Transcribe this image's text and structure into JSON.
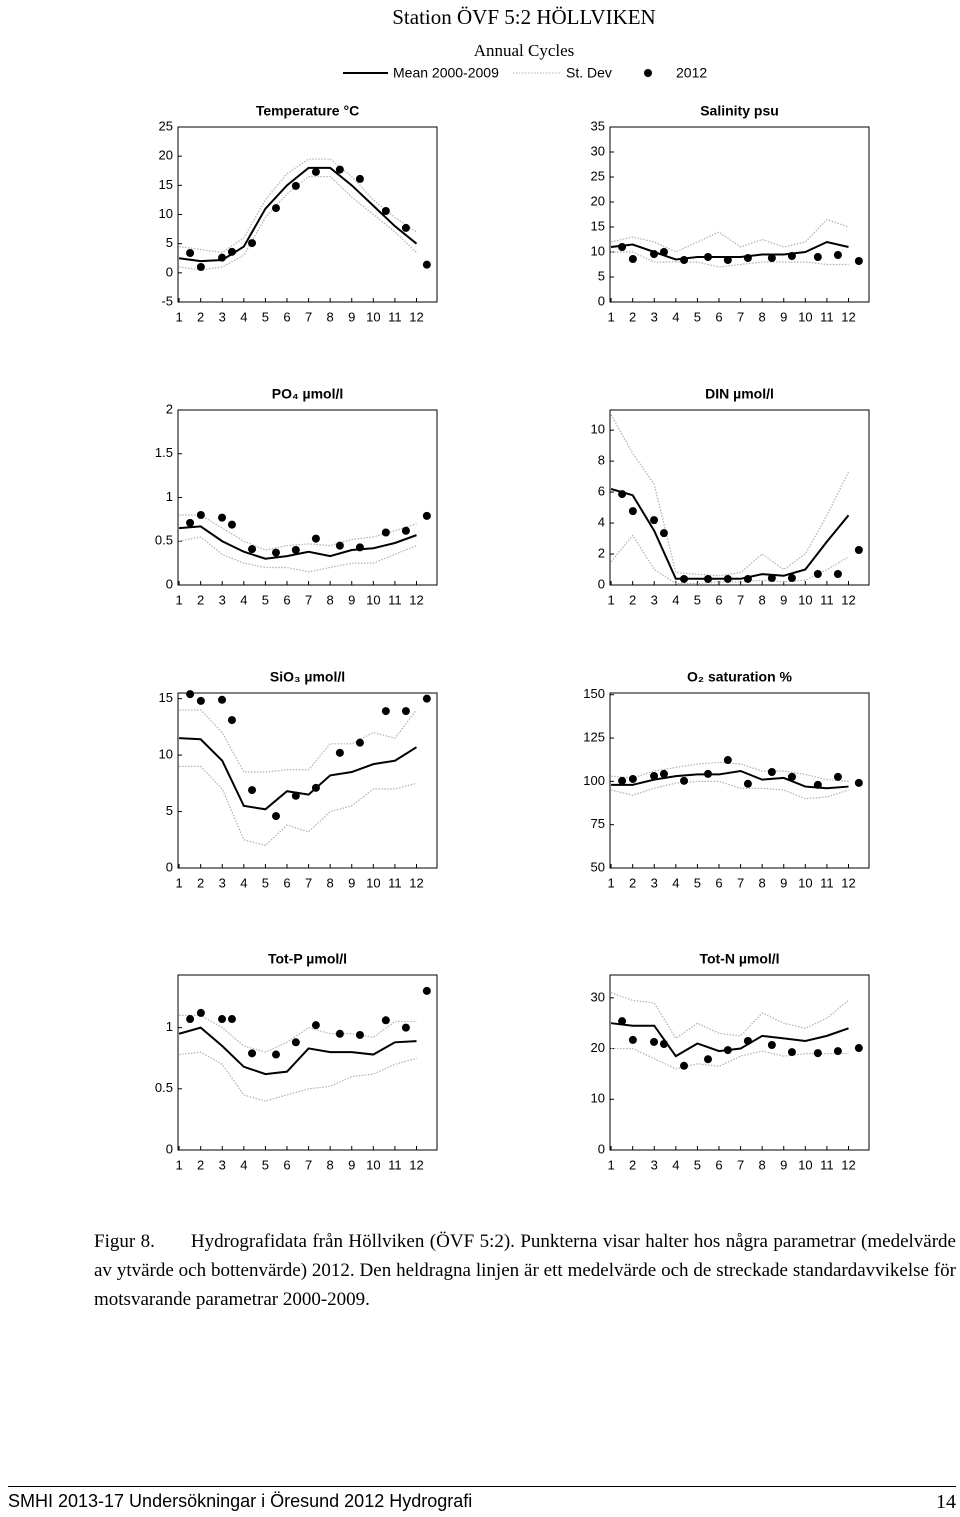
{
  "title": "Station ÖVF 5:2  HÖLLVIKEN",
  "subtitle": "Annual Cycles",
  "legend": [
    "Mean 2000-2009",
    "St. Dev",
    "2012"
  ],
  "chart_data": [
    {
      "type": "line",
      "title": "Temperature °C",
      "x": [
        1,
        2,
        3,
        4,
        5,
        6,
        7,
        8,
        9,
        10,
        11,
        12
      ],
      "xlim": [
        0.95,
        12.95
      ],
      "xticks": [
        1,
        2,
        3,
        4,
        5,
        6,
        7,
        8,
        9,
        10,
        11,
        12
      ],
      "ylim": [
        -5,
        25
      ],
      "yticks": [
        -5,
        0,
        5,
        10,
        15,
        20,
        25
      ],
      "series": [
        {
          "color": "#000000",
          "values": [
            2.5,
            2,
            2.2,
            4.5,
            11,
            15,
            18,
            18,
            15,
            11.5,
            8,
            5
          ]
        },
        {
          "color": "#b0b0b0",
          "upper": [
            4.5,
            4,
            3.5,
            6,
            12.5,
            17,
            19.5,
            19.5,
            16.5,
            12.5,
            9.5,
            7
          ],
          "lower": [
            1,
            0.5,
            1,
            3,
            9.5,
            13.5,
            16.5,
            16.5,
            13,
            10,
            7,
            3.5
          ]
        },
        {
          "color": "#000000",
          "x": [
            1.51,
            2.01,
            2.99,
            3.45,
            4.38,
            5.49,
            6.41,
            7.34,
            8.45,
            9.38,
            10.58,
            11.51,
            12.48
          ],
          "values": [
            3.4,
            1.0,
            2.6,
            3.6,
            5.1,
            11.1,
            14.9,
            17.3,
            17.7,
            16.1,
            10.6,
            7.7,
            1.4
          ]
        }
      ]
    },
    {
      "type": "line",
      "title": "Salinity psu",
      "x": [
        1,
        2,
        3,
        4,
        5,
        6,
        7,
        8,
        9,
        10,
        11,
        12
      ],
      "xlim": [
        0.95,
        12.95
      ],
      "xticks": [
        1,
        2,
        3,
        4,
        5,
        6,
        7,
        8,
        9,
        10,
        11,
        12
      ],
      "ylim": [
        0,
        35
      ],
      "yticks": [
        0,
        5,
        10,
        15,
        20,
        25,
        30,
        35
      ],
      "series": [
        {
          "color": "#000000",
          "values": [
            11,
            11.5,
            10,
            8.5,
            9,
            9,
            9,
            9.5,
            9.5,
            10,
            12,
            11
          ]
        },
        {
          "color": "#b0b0b0",
          "upper": [
            12,
            13,
            12,
            10,
            12,
            14,
            11,
            12.5,
            11,
            12,
            16.5,
            15
          ],
          "lower": [
            10,
            10,
            8,
            8,
            8,
            7,
            7.5,
            8,
            8,
            8,
            7.5,
            7.5
          ]
        },
        {
          "color": "#000000",
          "x": [
            1.51,
            2.01,
            2.99,
            3.45,
            4.38,
            5.49,
            6.41,
            7.34,
            8.45,
            9.38,
            10.58,
            11.51,
            12.48
          ],
          "values": [
            11,
            8.6,
            9.6,
            10,
            8.4,
            9,
            8.4,
            8.8,
            8.8,
            9.2,
            9,
            9.4,
            8.2
          ]
        }
      ]
    },
    {
      "type": "line",
      "title": "PO₄ µmol/l",
      "x": [
        1,
        2,
        3,
        4,
        5,
        6,
        7,
        8,
        9,
        10,
        11,
        12
      ],
      "xlim": [
        0.95,
        12.95
      ],
      "xticks": [
        1,
        2,
        3,
        4,
        5,
        6,
        7,
        8,
        9,
        10,
        11,
        12
      ],
      "ylim": [
        0,
        2
      ],
      "yticks": [
        0,
        0.5,
        1,
        1.5,
        2
      ],
      "series": [
        {
          "color": "#000000",
          "values": [
            0.65,
            0.67,
            0.5,
            0.38,
            0.3,
            0.33,
            0.38,
            0.33,
            0.4,
            0.42,
            0.48,
            0.57
          ]
        },
        {
          "color": "#b0b0b0",
          "upper": [
            0.8,
            0.8,
            0.65,
            0.5,
            0.4,
            0.45,
            0.47,
            0.45,
            0.52,
            0.55,
            0.62,
            0.7
          ],
          "lower": [
            0.5,
            0.55,
            0.35,
            0.25,
            0.2,
            0.2,
            0.15,
            0.2,
            0.25,
            0.25,
            0.35,
            0.45
          ]
        },
        {
          "color": "#000000",
          "x": [
            1.51,
            2.01,
            2.99,
            3.45,
            4.38,
            5.49,
            6.41,
            7.34,
            8.45,
            9.38,
            10.58,
            11.51,
            12.48
          ],
          "values": [
            0.71,
            0.8,
            0.77,
            0.69,
            0.41,
            0.37,
            0.4,
            0.53,
            0.45,
            0.43,
            0.6,
            0.62,
            0.79
          ]
        }
      ]
    },
    {
      "type": "line",
      "title": "DIN µmol/l",
      "x": [
        1,
        2,
        3,
        4,
        5,
        6,
        7,
        8,
        9,
        10,
        11,
        12
      ],
      "xlim": [
        0.95,
        12.95
      ],
      "xticks": [
        1,
        2,
        3,
        4,
        5,
        6,
        7,
        8,
        9,
        10,
        11,
        12
      ],
      "ylim": [
        0,
        11.3
      ],
      "yticks": [
        0,
        2,
        4,
        6,
        8,
        10
      ],
      "series": [
        {
          "color": "#000000",
          "values": [
            6.2,
            5.8,
            3.5,
            0.4,
            0.4,
            0.4,
            0.4,
            0.7,
            0.6,
            1,
            2.8,
            4.5
          ]
        },
        {
          "color": "#b0b0b0",
          "upper": [
            11,
            8.5,
            6.5,
            0.8,
            0.7,
            0.6,
            0.8,
            2,
            1,
            2,
            4.5,
            7.3
          ],
          "lower": [
            1.5,
            3.2,
            1,
            0.1,
            0.1,
            0.2,
            0.2,
            0.3,
            0.2,
            0.3,
            1,
            1.8
          ]
        },
        {
          "color": "#000000",
          "x": [
            1.51,
            2.01,
            2.99,
            3.45,
            4.38,
            5.49,
            6.41,
            7.34,
            8.45,
            9.38,
            10.58,
            11.51,
            12.48
          ],
          "values": [
            5.87,
            4.77,
            4.19,
            3.35,
            0.39,
            0.39,
            0.39,
            0.39,
            0.45,
            0.45,
            0.71,
            0.71,
            2.26
          ]
        }
      ]
    },
    {
      "type": "line",
      "title": "SiO₃ µmol/l",
      "x": [
        1,
        2,
        3,
        4,
        5,
        6,
        7,
        8,
        9,
        10,
        11,
        12
      ],
      "xlim": [
        0.95,
        12.95
      ],
      "xticks": [
        1,
        2,
        3,
        4,
        5,
        6,
        7,
        8,
        9,
        10,
        11,
        12
      ],
      "ylim": [
        0,
        15.5
      ],
      "yticks": [
        0,
        5,
        10,
        15
      ],
      "series": [
        {
          "color": "#000000",
          "values": [
            11.5,
            11.4,
            9.5,
            5.5,
            5.2,
            6.8,
            6.5,
            8.2,
            8.5,
            9.2,
            9.5,
            10.7
          ]
        },
        {
          "color": "#b0b0b0",
          "upper": [
            14,
            14,
            12,
            8.5,
            8.5,
            8.7,
            8.7,
            11,
            11,
            12,
            11.5,
            14
          ],
          "lower": [
            9,
            9,
            7,
            2.5,
            2,
            3.8,
            3.2,
            5,
            5.5,
            7,
            7,
            7.5
          ]
        },
        {
          "color": "#000000",
          "x": [
            1.51,
            2.01,
            2.99,
            3.45,
            4.38,
            5.49,
            6.41,
            7.34,
            8.45,
            9.38,
            10.58,
            11.51,
            12.48
          ],
          "values": [
            15.4,
            14.8,
            14.9,
            13.1,
            6.9,
            4.6,
            6.4,
            7.1,
            10.2,
            11.1,
            13.9,
            13.9,
            15.0
          ]
        }
      ]
    },
    {
      "type": "line",
      "title": "O₂ saturation %",
      "x": [
        1,
        2,
        3,
        4,
        5,
        6,
        7,
        8,
        9,
        10,
        11,
        12
      ],
      "xlim": [
        0.95,
        12.95
      ],
      "xticks": [
        1,
        2,
        3,
        4,
        5,
        6,
        7,
        8,
        9,
        10,
        11,
        12
      ],
      "ylim": [
        50,
        151
      ],
      "yticks": [
        50,
        75,
        100,
        125,
        150
      ],
      "series": [
        {
          "color": "#000000",
          "values": [
            98,
            98,
            101,
            103,
            104,
            104,
            106,
            101,
            102,
            97,
            96,
            97
          ]
        },
        {
          "color": "#b0b0b0",
          "upper": [
            103,
            102,
            106,
            108,
            110,
            111,
            110,
            106,
            106,
            104,
            101,
            100
          ],
          "lower": [
            95,
            92,
            96,
            99,
            100,
            100,
            96,
            96,
            95,
            90,
            91,
            95
          ]
        },
        {
          "color": "#000000",
          "x": [
            1.51,
            2.01,
            2.99,
            3.45,
            4.38,
            5.49,
            6.41,
            7.34,
            8.45,
            9.38,
            10.58,
            11.51,
            12.48
          ],
          "values": [
            100.3,
            101.4,
            103.1,
            104.3,
            100.3,
            104.3,
            112.3,
            98.6,
            105.4,
            102.6,
            98,
            102.6,
            99.1
          ]
        }
      ]
    },
    {
      "type": "line",
      "title": "Tot-P µmol/l",
      "x": [
        1,
        2,
        3,
        4,
        5,
        6,
        7,
        8,
        9,
        10,
        11,
        12
      ],
      "xlim": [
        0.95,
        12.95
      ],
      "xticks": [
        1,
        2,
        3,
        4,
        5,
        6,
        7,
        8,
        9,
        10,
        11,
        12
      ],
      "ylim": [
        0,
        1.43
      ],
      "yticks": [
        0,
        0.5,
        1
      ],
      "series": [
        {
          "color": "#000000",
          "values": [
            0.95,
            1.0,
            0.85,
            0.68,
            0.62,
            0.64,
            0.83,
            0.8,
            0.8,
            0.78,
            0.88,
            0.89
          ]
        },
        {
          "color": "#b0b0b0",
          "upper": [
            1.1,
            1.1,
            1.0,
            0.85,
            0.8,
            0.88,
            1.0,
            0.95,
            0.95,
            0.92,
            1.05,
            1.05
          ],
          "lower": [
            0.78,
            0.8,
            0.7,
            0.45,
            0.4,
            0.45,
            0.5,
            0.52,
            0.6,
            0.62,
            0.7,
            0.75
          ]
        },
        {
          "color": "#000000",
          "x": [
            1.51,
            2.01,
            2.99,
            3.45,
            4.38,
            5.49,
            6.41,
            7.34,
            8.45,
            9.38,
            10.58,
            11.51,
            12.48
          ],
          "values": [
            1.07,
            1.12,
            1.07,
            1.07,
            0.79,
            0.78,
            0.88,
            1.02,
            0.95,
            0.94,
            1.06,
            1.0,
            1.3
          ]
        }
      ]
    },
    {
      "type": "line",
      "title": "Tot-N µmol/l",
      "x": [
        1,
        2,
        3,
        4,
        5,
        6,
        7,
        8,
        9,
        10,
        11,
        12
      ],
      "xlim": [
        0.95,
        12.95
      ],
      "xticks": [
        1,
        2,
        3,
        4,
        5,
        6,
        7,
        8,
        9,
        10,
        11,
        12
      ],
      "ylim": [
        0,
        34.5
      ],
      "yticks": [
        0,
        10,
        20,
        30
      ],
      "series": [
        {
          "color": "#000000",
          "values": [
            25,
            24.5,
            24.5,
            18.5,
            21,
            19.5,
            20,
            22.5,
            22,
            21.5,
            22.5,
            24
          ]
        },
        {
          "color": "#b0b0b0",
          "upper": [
            31,
            29.5,
            29,
            22,
            25,
            23,
            22.5,
            27,
            25,
            24,
            26,
            29.5
          ],
          "lower": [
            20,
            20,
            18,
            16,
            17,
            16.5,
            18.5,
            19.5,
            18.5,
            19,
            19,
            19
          ]
        },
        {
          "color": "#000000",
          "x": [
            1.51,
            2.01,
            2.99,
            3.45,
            4.38,
            5.49,
            6.41,
            7.34,
            8.45,
            9.38,
            10.58,
            11.51,
            12.48
          ],
          "values": [
            25.4,
            21.7,
            21.3,
            20.9,
            16.6,
            17.9,
            19.7,
            21.5,
            20.7,
            19.3,
            19.1,
            19.5,
            20.1
          ]
        }
      ]
    }
  ],
  "caption": {
    "label": "Figur 8.",
    "text": "Hydrografidata från Höllviken (ÖVF 5:2). Punkterna visar halter hos några parametrar (medelvärde av ytvärde och bottenvärde) 2012. Den heldragna linjen är ett medelvärde och de streckade standardavvikelse för motsvarande parametrar 2000-2009."
  },
  "footer": {
    "text": "SMHI 2013-17 Undersökningar i Öresund 2012 Hydrografi",
    "page": "14"
  }
}
